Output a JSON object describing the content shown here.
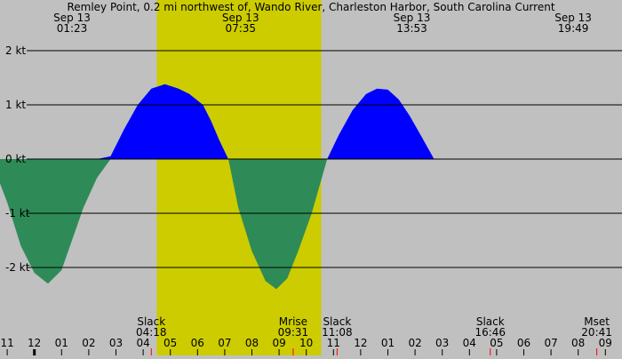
{
  "title": "Remley Point, 0.2 mi northwest of, Wando River, Charleston Harbor, South Carolina Current",
  "colors": {
    "night": "#c0c0c0",
    "day": "#cccc00",
    "flood": "#0000ff",
    "ebb": "#2e8b57",
    "tick_mark": "#ff0000",
    "gridline": "#000000"
  },
  "chart_data": {
    "type": "area",
    "unit": "kt",
    "x_unit": "hours",
    "xlim": [
      22.45,
      33.6
    ],
    "ylim": [
      -2.95,
      2.95
    ],
    "y_ticks": [
      {
        "value": 2,
        "label": "2 kt"
      },
      {
        "value": 1,
        "label": "1 kt"
      },
      {
        "value": 0,
        "label": "0 kt"
      },
      {
        "value": -1,
        "label": "-1 kt"
      },
      {
        "value": -2,
        "label": "-2 kt"
      }
    ],
    "day_period": {
      "start": 28.5,
      "end": 34.55
    },
    "series": [
      {
        "values_x": [
          22.4,
          23.0,
          23.5,
          24.0,
          24.5,
          25.0,
          25.383,
          25.8,
          26.3,
          26.8,
          27.3,
          27.7
        ],
        "values_y": [
          0,
          -0.8,
          -1.6,
          -2.1,
          -2.3,
          -2.05,
          -1.5,
          -0.9,
          -0.35,
          0,
          0,
          0
        ]
      },
      {
        "values_x": [
          26.3,
          26.8,
          27.3,
          27.8,
          28.3,
          28.8,
          29.3,
          29.7,
          30.2,
          30.5,
          30.8,
          31.133
        ],
        "values_y": [
          0,
          0.05,
          0.55,
          1.0,
          1.3,
          1.38,
          1.3,
          1.2,
          1.0,
          0.7,
          0.35,
          0
        ]
      },
      {
        "values_x": [
          31.133,
          31.5,
          32.0,
          32.5,
          32.9,
          33.3,
          33.7,
          34.2,
          34.767
        ],
        "values_y": [
          0,
          -0.9,
          -1.7,
          -2.25,
          -2.4,
          -2.2,
          -1.7,
          -1.0,
          0
        ]
      },
      {
        "values_x": [
          34.767,
          35.2,
          35.7,
          36.2,
          36.6,
          37.0,
          37.4,
          37.8,
          38.2,
          38.7
        ],
        "values_y": [
          0,
          0.45,
          0.9,
          1.2,
          1.3,
          1.28,
          1.1,
          0.8,
          0.45,
          0
        ]
      }
    ],
    "top_labels": [
      {
        "day": "Sep 13",
        "time": "01:23",
        "x": 25.383
      },
      {
        "day": "Sep 13",
        "time": "07:35",
        "x": 31.583
      },
      {
        "day": "Sep 13",
        "time": "13:53",
        "x": 37.883
      },
      {
        "day": "Sep 13",
        "time": "19:49",
        "x": 43.817
      }
    ],
    "event_labels": [
      {
        "name": "Slack",
        "time": "04:18",
        "x": 28.3
      },
      {
        "name": "Mrise",
        "time": "09:31",
        "x": 33.517
      },
      {
        "name": "Slack",
        "time": "11:08",
        "x": 35.133
      },
      {
        "name": "Slack",
        "time": "16:46",
        "x": 40.767
      },
      {
        "name": "Mset",
        "time": "20:41",
        "x": 44.683
      }
    ],
    "hour_ticks": [
      "11",
      "12",
      "01",
      "02",
      "03",
      "04",
      "05",
      "06",
      "07",
      "08",
      "09",
      "10",
      "11",
      "12",
      "01",
      "02",
      "03",
      "04",
      "05",
      "06",
      "07",
      "08",
      "09"
    ],
    "hour_ticks_start": 23
  }
}
